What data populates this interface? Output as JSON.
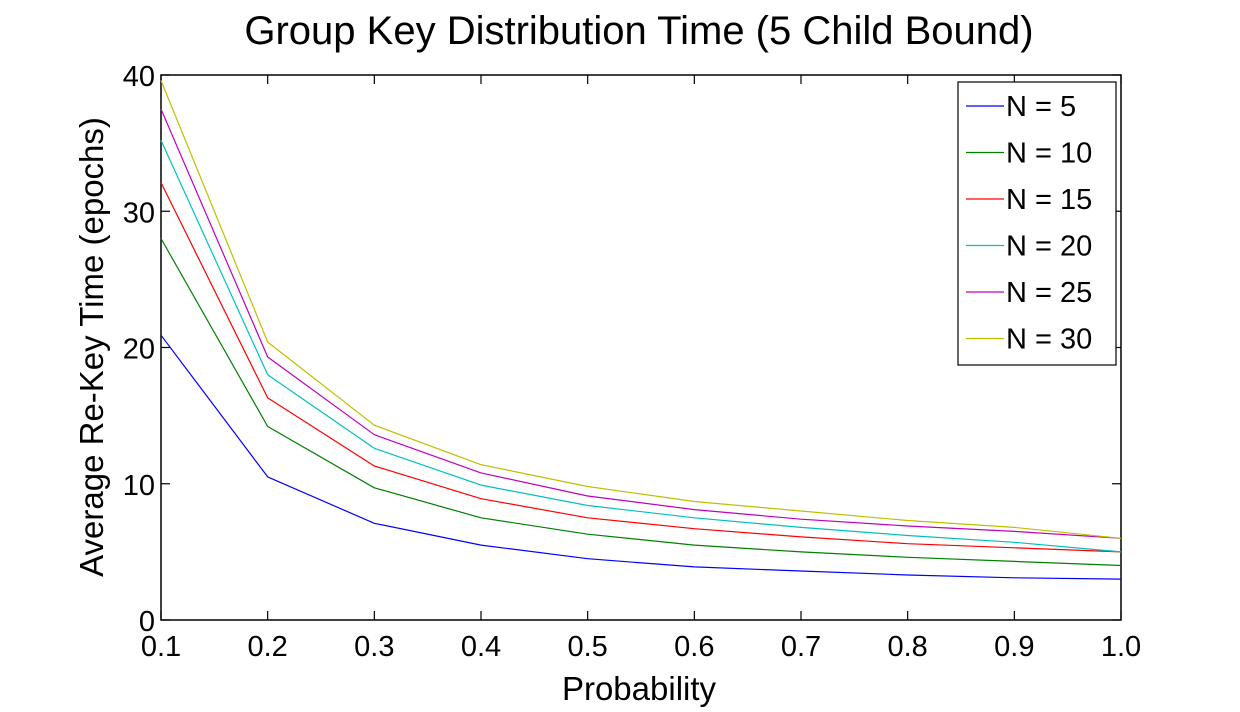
{
  "chart_data": {
    "type": "line",
    "title": "Group Key Distribution Time (5 Child Bound)",
    "xlabel": "Probability",
    "ylabel": "Average Re-Key Time (epochs)",
    "xlim": [
      0.1,
      1.0
    ],
    "ylim": [
      0,
      40
    ],
    "x_ticks": [
      "0.1",
      "0.2",
      "0.3",
      "0.4",
      "0.5",
      "0.6",
      "0.7",
      "0.8",
      "0.9",
      "1.0"
    ],
    "y_ticks": [
      "0",
      "10",
      "20",
      "30",
      "40"
    ],
    "grid": false,
    "legend_position": "top-right",
    "x": [
      0.1,
      0.2,
      0.3,
      0.4,
      0.5,
      0.6,
      0.7,
      0.8,
      0.9,
      1.0
    ],
    "series": [
      {
        "name": "N = 5",
        "color": "#0000ff",
        "values": [
          20.9,
          10.5,
          7.1,
          5.5,
          4.5,
          3.9,
          3.6,
          3.3,
          3.1,
          3.0
        ]
      },
      {
        "name": "N = 10",
        "color": "#008000",
        "values": [
          28.0,
          14.2,
          9.7,
          7.5,
          6.3,
          5.5,
          5.0,
          4.6,
          4.3,
          4.0
        ]
      },
      {
        "name": "N = 15",
        "color": "#ff0000",
        "values": [
          32.1,
          16.3,
          11.3,
          8.9,
          7.5,
          6.7,
          6.1,
          5.6,
          5.3,
          5.0
        ]
      },
      {
        "name": "N = 20",
        "color": "#00bfbf",
        "values": [
          35.2,
          18.0,
          12.6,
          9.9,
          8.4,
          7.5,
          6.8,
          6.2,
          5.7,
          5.0
        ]
      },
      {
        "name": "N = 25",
        "color": "#bf00bf",
        "values": [
          37.5,
          19.3,
          13.6,
          10.8,
          9.1,
          8.1,
          7.4,
          6.9,
          6.5,
          6.0
        ]
      },
      {
        "name": "N = 30",
        "color": "#bfbf00",
        "values": [
          39.6,
          20.4,
          14.3,
          11.4,
          9.8,
          8.7,
          8.0,
          7.3,
          6.8,
          6.0
        ]
      }
    ]
  }
}
